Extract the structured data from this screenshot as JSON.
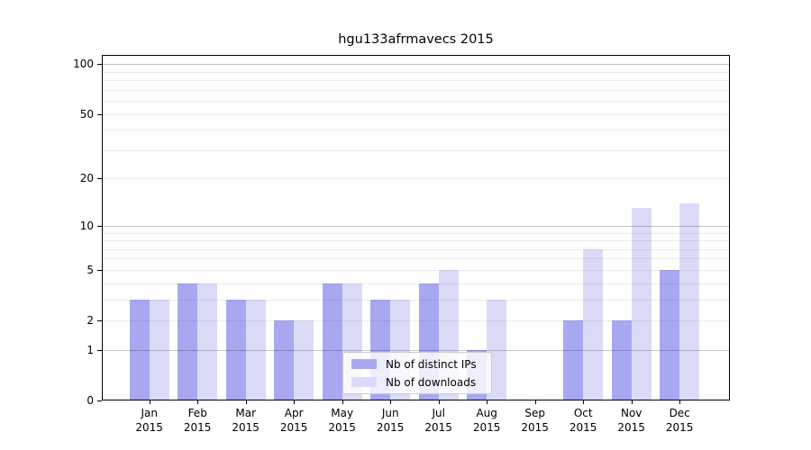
{
  "title": "hgu133afrmavecs 2015",
  "legend": {
    "position": "bottom-center-inside"
  },
  "chart_data": {
    "type": "bar",
    "title": "hgu133afrmavecs 2015",
    "categories": [
      "Jan 2015",
      "Feb 2015",
      "Mar 2015",
      "Apr 2015",
      "May 2015",
      "Jun 2015",
      "Jul 2015",
      "Aug 2015",
      "Sep 2015",
      "Oct 2015",
      "Nov 2015",
      "Dec 2015"
    ],
    "series": [
      {
        "name": "Nb of distinct IPs",
        "color": "#a8a8f2",
        "values": [
          3,
          4,
          3,
          2,
          4,
          3,
          4,
          1,
          0,
          2,
          2,
          5
        ]
      },
      {
        "name": "Nb of downloads",
        "color": "#dbdbf8",
        "values": [
          3,
          4,
          3,
          2,
          4,
          3,
          5,
          3,
          0,
          7,
          13,
          14
        ]
      }
    ],
    "xlabel": "",
    "ylabel": "",
    "y_axis": {
      "scale": "log1p",
      "ticks": [
        0,
        1,
        2,
        5,
        10,
        20,
        50,
        100
      ],
      "minor_ticks": [
        3,
        4,
        6,
        7,
        8,
        9,
        30,
        40,
        60,
        70,
        80,
        90
      ],
      "ylim": [
        0,
        113
      ]
    },
    "grid": {
      "on": true,
      "major_color": "#c7c7c7",
      "minor_color": "#ebebeb",
      "emphasized_values": [
        1,
        10,
        100
      ]
    }
  }
}
